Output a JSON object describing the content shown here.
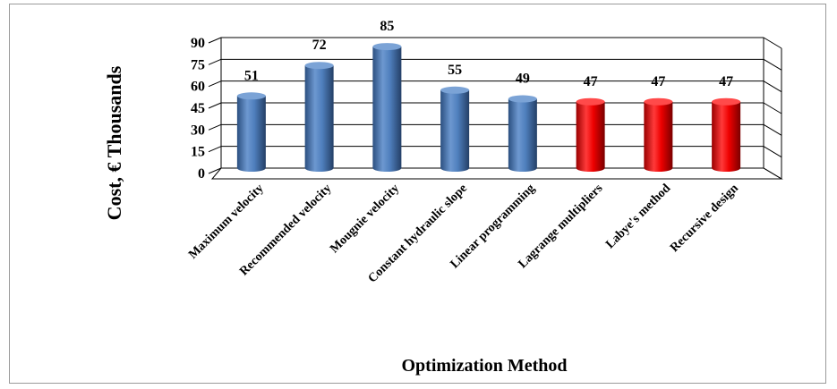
{
  "chart_data": {
    "type": "bar",
    "title": "",
    "xlabel": "Optimization Method",
    "ylabel": "Cost, € Thousands",
    "categories": [
      "Maximum velocity",
      "Recommended velocity",
      "Mougnie velocity",
      "Constant hydraulic slope",
      "Linear programming",
      "Lagrange multipliers",
      "Labye's method",
      "Recursive design"
    ],
    "values": [
      51,
      72,
      85,
      55,
      49,
      47,
      47,
      47
    ],
    "value_labels": [
      "51",
      "72",
      "85",
      "55",
      "49",
      "47",
      "47",
      "47"
    ],
    "bar_colors": [
      "#4f81bd",
      "#4f81bd",
      "#4f81bd",
      "#4f81bd",
      "#4f81bd",
      "#ff0000",
      "#ff0000",
      "#ff0000"
    ],
    "ylim": [
      0,
      90
    ],
    "yticks": [
      0,
      15,
      30,
      45,
      60,
      75,
      90
    ],
    "grid": true,
    "legend": "none",
    "style": "3d-cylinder"
  }
}
